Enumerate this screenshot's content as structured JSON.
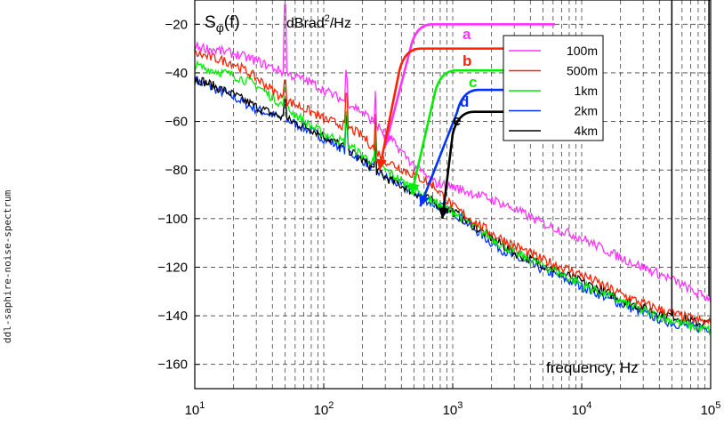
{
  "side_label": "ddl-saphire-noise-spectrum",
  "colors": {
    "a": "#ff33ff",
    "b": "#ff2200",
    "c": "#00ee00",
    "d": "#0033ff",
    "e": "#000000"
  },
  "chart_data": {
    "type": "line",
    "title": "Sφ(f)   dBrad²/Hz",
    "ylabel": "Sφ(f)",
    "yunit": "dBrad²/Hz",
    "xlabel": "frequency, Hz",
    "xscale": "log",
    "xlim": [
      10,
      100000
    ],
    "ylim": [
      -170,
      -10
    ],
    "x_ticks": [
      {
        "base": "10",
        "exp": "1"
      },
      {
        "base": "10",
        "exp": "2"
      },
      {
        "base": "10",
        "exp": "3"
      },
      {
        "base": "10",
        "exp": "4"
      },
      {
        "base": "10",
        "exp": "5"
      }
    ],
    "y_ticks": [
      "−20",
      "−40",
      "−60",
      "−80",
      "−100",
      "−120",
      "−140",
      "−160"
    ],
    "y_tick_values": [
      -20,
      -40,
      -60,
      -80,
      -100,
      -120,
      -140,
      -160
    ],
    "grid": true,
    "legend_position": "top-right",
    "series": [
      {
        "name": "100m",
        "tag": "a",
        "color": "#ff33ff",
        "x": [
          10,
          20,
          30,
          50,
          80,
          100,
          150,
          200,
          300,
          500,
          700,
          1000,
          2000,
          3000,
          5000,
          10000,
          20000,
          30000,
          50000,
          80000,
          100000
        ],
        "y": [
          -29,
          -32,
          -35,
          -40,
          -44,
          -47,
          -52,
          -56,
          -65,
          -78,
          -85,
          -87,
          -92,
          -96,
          -102,
          -108,
          -116,
          -120,
          -125,
          -131,
          -133
        ]
      },
      {
        "name": "500m",
        "tag": "b",
        "color": "#ff2200",
        "x": [
          10,
          20,
          30,
          50,
          80,
          100,
          150,
          200,
          300,
          500,
          700,
          1000,
          2000,
          3000,
          5000,
          10000,
          20000,
          30000,
          50000,
          80000,
          100000
        ],
        "y": [
          -32,
          -36,
          -42,
          -51,
          -56,
          -59,
          -62,
          -66,
          -76,
          -82,
          -86,
          -95,
          -106,
          -111,
          -117,
          -123,
          -131,
          -135,
          -139,
          -142,
          -143
        ]
      },
      {
        "name": "1km",
        "tag": "c",
        "color": "#00ee00",
        "x": [
          10,
          20,
          30,
          50,
          80,
          100,
          150,
          200,
          300,
          500,
          700,
          1000,
          2000,
          3000,
          5000,
          10000,
          20000,
          30000,
          50000,
          80000,
          100000
        ],
        "y": [
          -37,
          -41,
          -45,
          -54,
          -62,
          -65,
          -69,
          -74,
          -80,
          -88,
          -93,
          -97,
          -108,
          -114,
          -119,
          -127,
          -134,
          -138,
          -142,
          -145,
          -146
        ]
      },
      {
        "name": "2km",
        "tag": "d",
        "color": "#0033ff",
        "x": [
          10,
          20,
          30,
          50,
          80,
          100,
          150,
          200,
          300,
          500,
          700,
          1000,
          2000,
          3000,
          5000,
          10000,
          20000,
          30000,
          50000,
          80000,
          100000
        ],
        "y": [
          -43,
          -50,
          -55,
          -59,
          -64,
          -67,
          -72,
          -76,
          -83,
          -89,
          -94,
          -97,
          -110,
          -116,
          -121,
          -128,
          -135,
          -139,
          -143,
          -145,
          -145
        ]
      },
      {
        "name": "4km",
        "tag": "e",
        "color": "#000000",
        "x": [
          10,
          20,
          30,
          50,
          80,
          100,
          150,
          200,
          300,
          500,
          700,
          1000,
          2000,
          3000,
          5000,
          10000,
          20000,
          30000,
          50000,
          80000,
          100000
        ],
        "y": [
          -42,
          -49,
          -54,
          -59,
          -63,
          -66,
          -71,
          -76,
          -83,
          -89,
          -93,
          -97,
          -108,
          -114,
          -119,
          -126,
          -133,
          -137,
          -140,
          -143,
          -143
        ]
      }
    ],
    "annotations": [
      {
        "label": "a",
        "color": "#ff33ff",
        "level": -20,
        "arrow_tip": [
          300,
          -70
        ]
      },
      {
        "label": "b",
        "color": "#ff2200",
        "level": -30,
        "arrow_tip": [
          270,
          -80
        ]
      },
      {
        "label": "c",
        "color": "#00ee00",
        "level": -39,
        "arrow_tip": [
          480,
          -90
        ]
      },
      {
        "label": "d",
        "color": "#0033ff",
        "level": -47,
        "arrow_tip": [
          560,
          -95
        ]
      },
      {
        "label": "e",
        "color": "#000000",
        "level": -56,
        "arrow_tip": [
          830,
          -100
        ]
      }
    ]
  }
}
